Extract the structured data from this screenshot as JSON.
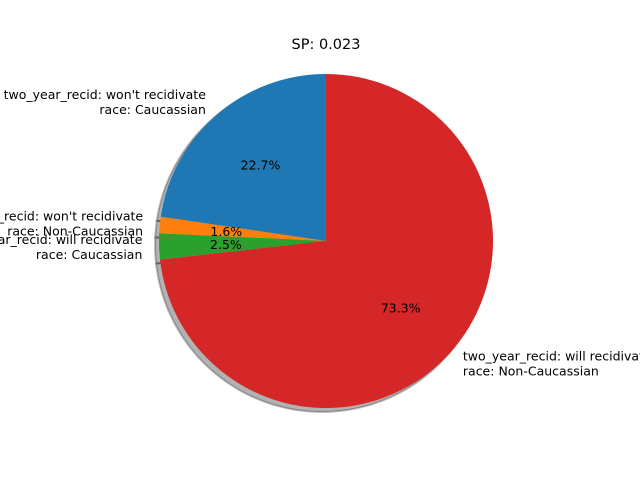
{
  "chart_data": {
    "type": "pie",
    "title": "SP: 0.023",
    "shadow": true,
    "start_angle_deg": 90,
    "direction": "counterclockwise",
    "slices": [
      {
        "label_lines": [
          "two_year_recid: won't recidivate",
          "race: Caucassian"
        ],
        "value": 22.7,
        "pct_label": "22.7%",
        "color": "#1f77b4"
      },
      {
        "label_lines": [
          "two_year_recid: won't recidivate",
          "race: Non-Caucassian"
        ],
        "value": 1.6,
        "pct_label": "1.6%",
        "color": "#ff7f0e"
      },
      {
        "label_lines": [
          "two_year_recid: will recidivate",
          "race: Caucassian"
        ],
        "value": 2.5,
        "pct_label": "2.5%",
        "color": "#2ca02c"
      },
      {
        "label_lines": [
          "two_year_recid: will recidivate",
          "race: Non-Caucassian"
        ],
        "value": 73.3,
        "pct_label": "73.3%",
        "color": "#d62728"
      }
    ]
  }
}
